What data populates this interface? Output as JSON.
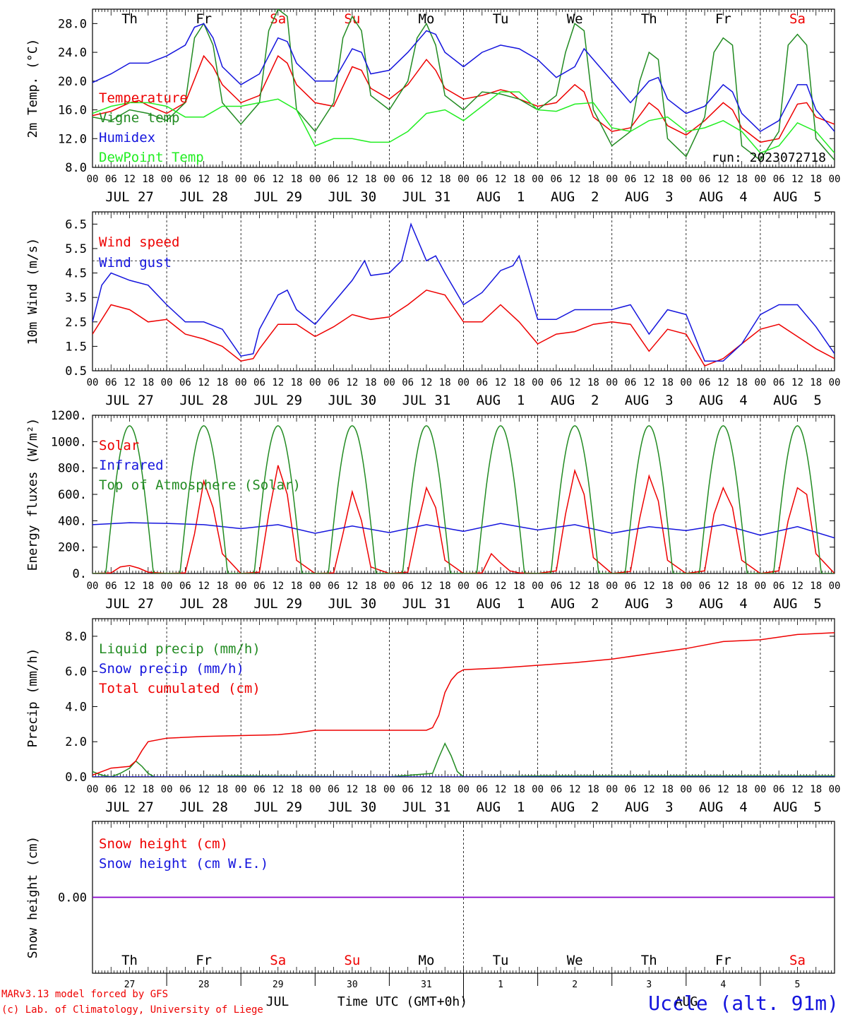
{
  "colors": {
    "red": "#ee0000",
    "green": "#228b22",
    "blue": "#1414dd",
    "lime": "#22ee22",
    "purple": "#8800cc",
    "black": "#000000"
  },
  "days": [
    {
      "abbr": "Th",
      "weekend": false,
      "date": "JUL 27",
      "num": "27"
    },
    {
      "abbr": "Fr",
      "weekend": false,
      "date": "JUL 28",
      "num": "28"
    },
    {
      "abbr": "Sa",
      "weekend": true,
      "date": "JUL 29",
      "num": "29"
    },
    {
      "abbr": "Su",
      "weekend": true,
      "date": "JUL 30",
      "num": "30"
    },
    {
      "abbr": "Mo",
      "weekend": false,
      "date": "JUL 31",
      "num": "31"
    },
    {
      "abbr": "Tu",
      "weekend": false,
      "date": "AUG  1",
      "num": "1"
    },
    {
      "abbr": "We",
      "weekend": false,
      "date": "AUG  2",
      "num": "2"
    },
    {
      "abbr": "Th",
      "weekend": false,
      "date": "AUG  3",
      "num": "3"
    },
    {
      "abbr": "Fr",
      "weekend": false,
      "date": "AUG  4",
      "num": "4"
    },
    {
      "abbr": "Sa",
      "weekend": true,
      "date": "AUG  5",
      "num": "5"
    }
  ],
  "hour_ticks": [
    "00",
    "06",
    "12",
    "18"
  ],
  "final_tick": "00",
  "footer": {
    "model_line": "MARv3.13 model forced by GFS",
    "lab_line": "(c) Lab. of Climatology, University of Liege",
    "month_jul": "JUL",
    "month_aug": "AUG",
    "time_label": "Time UTC (GMT+0h)",
    "station": "Uccle (alt. 91m)"
  },
  "chart_data": [
    {
      "type": "line",
      "ylabel": "2m Temp. (°C)",
      "ylim": [
        8,
        30
      ],
      "yticks": [
        "8.0",
        "12.0",
        "16.0",
        "20.0",
        "24.0",
        "28.0"
      ],
      "show_days": true,
      "annotation": "run: 2023072718",
      "x_unit": "hours since Jul 27 00 UTC",
      "series": [
        {
          "name": "Temperature",
          "color": "#ee0000",
          "x": [
            0,
            6,
            12,
            15,
            18,
            24,
            30,
            36,
            39,
            42,
            48,
            54,
            60,
            63,
            66,
            72,
            78,
            84,
            87,
            90,
            96,
            102,
            108,
            111,
            114,
            120,
            126,
            132,
            135,
            138,
            144,
            150,
            156,
            159,
            162,
            168,
            174,
            180,
            183,
            186,
            192,
            198,
            204,
            207,
            210,
            216,
            222,
            228,
            231,
            234,
            240
          ],
          "values": [
            15.2,
            15.8,
            17,
            17.3,
            16.6,
            15.5,
            17,
            23.5,
            22,
            19.5,
            17,
            18,
            23.5,
            22.5,
            19.5,
            17,
            16.5,
            22,
            21.5,
            19,
            17.5,
            19.5,
            23,
            21.5,
            19,
            17.5,
            18,
            18.8,
            18.5,
            17.5,
            16.5,
            17,
            19.5,
            18.5,
            15,
            13,
            13.5,
            17,
            16,
            13.8,
            12.5,
            14.5,
            17,
            16,
            13.5,
            11.5,
            12,
            16.8,
            17,
            15,
            14
          ]
        },
        {
          "name": "Vigne temp",
          "color": "#228b22",
          "x": [
            0,
            6,
            12,
            18,
            24,
            30,
            33,
            36,
            39,
            42,
            48,
            54,
            57,
            60,
            63,
            66,
            72,
            78,
            81,
            84,
            87,
            90,
            96,
            102,
            105,
            108,
            111,
            114,
            120,
            126,
            132,
            138,
            144,
            150,
            153,
            156,
            159,
            162,
            168,
            174,
            177,
            180,
            183,
            186,
            192,
            198,
            201,
            204,
            207,
            210,
            216,
            222,
            225,
            228,
            231,
            234,
            240
          ],
          "values": [
            15,
            14.5,
            16,
            15.5,
            14.5,
            17,
            26,
            28,
            25,
            17,
            14,
            17,
            27,
            30,
            29,
            16,
            13,
            17,
            26,
            29,
            27,
            18,
            16,
            20,
            26,
            28,
            25,
            18,
            16,
            18.5,
            18.2,
            17.5,
            16,
            18,
            24,
            28,
            27,
            16,
            11,
            13,
            20,
            24,
            23,
            12,
            9.5,
            15,
            24,
            26,
            25,
            11,
            9,
            13,
            25,
            26.5,
            25,
            12,
            9
          ]
        },
        {
          "name": "Humidex",
          "color": "#1414dd",
          "x": [
            0,
            6,
            12,
            18,
            24,
            30,
            33,
            36,
            39,
            42,
            48,
            54,
            60,
            63,
            66,
            72,
            78,
            84,
            87,
            90,
            96,
            102,
            108,
            111,
            114,
            120,
            126,
            132,
            138,
            144,
            150,
            156,
            159,
            162,
            168,
            174,
            180,
            183,
            186,
            192,
            198,
            204,
            207,
            210,
            216,
            222,
            228,
            231,
            234,
            240
          ],
          "values": [
            19.8,
            21,
            22.5,
            22.5,
            23.5,
            25,
            27.5,
            28,
            26,
            22,
            19.5,
            21,
            26,
            25.5,
            22.5,
            20,
            20,
            24.5,
            24,
            21,
            21.5,
            24,
            27,
            26.5,
            24,
            22,
            24,
            25,
            24.5,
            23,
            20.5,
            22,
            24.5,
            23,
            20,
            17,
            20,
            20.5,
            17.5,
            15.5,
            16.5,
            19.5,
            18.5,
            15.5,
            13,
            14.5,
            19.5,
            19.5,
            16,
            13
          ]
        },
        {
          "name": "DewPoint Temp",
          "color": "#22ee22",
          "x": [
            0,
            6,
            12,
            18,
            24,
            30,
            36,
            42,
            48,
            54,
            60,
            66,
            72,
            78,
            84,
            90,
            96,
            102,
            108,
            114,
            120,
            126,
            132,
            138,
            144,
            150,
            156,
            162,
            168,
            174,
            180,
            186,
            192,
            198,
            204,
            210,
            216,
            222,
            228,
            234,
            240
          ],
          "values": [
            15.5,
            16.5,
            17,
            17,
            16.5,
            15,
            15,
            16.5,
            16.5,
            17,
            17.5,
            16,
            11,
            12,
            12,
            11.5,
            11.5,
            13,
            15.5,
            16,
            14.5,
            16.5,
            18.5,
            18.5,
            16,
            15.8,
            16.8,
            17,
            13.5,
            13,
            14.5,
            15,
            13,
            13.5,
            14.5,
            13,
            10,
            11,
            14.2,
            13,
            10
          ]
        }
      ]
    },
    {
      "type": "line",
      "ylabel": "10m Wind (m/s)",
      "ylim": [
        0.5,
        7
      ],
      "yticks": [
        "0.5",
        "1.5",
        "2.5",
        "3.5",
        "4.5",
        "5.5",
        "6.5"
      ],
      "reference_line": 5,
      "show_days": true,
      "x_unit": "hours since Jul 27 00 UTC",
      "series": [
        {
          "name": "Wind speed",
          "color": "#ee0000",
          "x": [
            0,
            6,
            12,
            18,
            24,
            30,
            36,
            42,
            48,
            52,
            54,
            60,
            66,
            72,
            78,
            84,
            90,
            96,
            102,
            108,
            114,
            120,
            126,
            132,
            138,
            144,
            150,
            156,
            162,
            168,
            174,
            180,
            186,
            192,
            198,
            204,
            210,
            216,
            222,
            228,
            234,
            240
          ],
          "values": [
            2,
            3.2,
            3,
            2.5,
            2.6,
            2,
            1.8,
            1.5,
            0.9,
            1,
            1.4,
            2.4,
            2.4,
            1.9,
            2.3,
            2.8,
            2.6,
            2.7,
            3.2,
            3.8,
            3.6,
            2.5,
            2.5,
            3.2,
            2.5,
            1.6,
            2,
            2.1,
            2.4,
            2.5,
            2.4,
            1.3,
            2.2,
            2,
            0.7,
            1,
            1.6,
            2.2,
            2.4,
            1.9,
            1.4,
            1
          ]
        },
        {
          "name": "Wind gust",
          "color": "#1414dd",
          "x": [
            0,
            3,
            6,
            12,
            18,
            24,
            30,
            36,
            42,
            48,
            52,
            54,
            60,
            63,
            66,
            72,
            78,
            84,
            88,
            90,
            96,
            100,
            103,
            108,
            111,
            114,
            120,
            126,
            132,
            136,
            138,
            144,
            150,
            156,
            162,
            168,
            174,
            180,
            186,
            192,
            198,
            204,
            210,
            216,
            222,
            228,
            234,
            240
          ],
          "values": [
            2.5,
            4,
            4.5,
            4.2,
            4,
            3.2,
            2.5,
            2.5,
            2.2,
            1.1,
            1.2,
            2.2,
            3.6,
            3.8,
            3,
            2.4,
            3.3,
            4.2,
            5,
            4.4,
            4.5,
            5,
            6.5,
            5,
            5.2,
            4.5,
            3.2,
            3.7,
            4.6,
            4.8,
            5.2,
            2.6,
            2.6,
            3,
            3,
            3,
            3.2,
            2,
            3,
            2.8,
            0.9,
            0.9,
            1.6,
            2.8,
            3.2,
            3.2,
            2.3,
            1.2
          ]
        }
      ]
    },
    {
      "type": "line",
      "ylabel": "Energy fluxes (W/m²)",
      "ylim": [
        0,
        1200
      ],
      "yticks": [
        "0.",
        "200.",
        "400.",
        "600.",
        "800.",
        "1000.",
        "1200."
      ],
      "show_days": true,
      "x_unit": "hours since Jul 27 00 UTC",
      "series": [
        {
          "name": "Solar",
          "color": "#ee0000",
          "x": [
            0,
            6,
            9,
            12,
            15,
            18,
            24,
            30,
            33,
            36,
            39,
            42,
            48,
            54,
            57,
            60,
            63,
            66,
            72,
            78,
            81,
            84,
            87,
            90,
            96,
            102,
            105,
            108,
            111,
            114,
            120,
            126,
            129,
            132,
            135,
            138,
            144,
            150,
            153,
            156,
            159,
            162,
            168,
            174,
            177,
            180,
            183,
            186,
            192,
            198,
            201,
            204,
            207,
            210,
            216,
            222,
            225,
            228,
            231,
            234,
            240
          ],
          "values": [
            0,
            5,
            50,
            60,
            40,
            10,
            0,
            5,
            300,
            700,
            500,
            150,
            0,
            10,
            450,
            820,
            600,
            100,
            0,
            5,
            300,
            620,
            400,
            50,
            0,
            10,
            350,
            650,
            500,
            100,
            0,
            5,
            150,
            80,
            20,
            5,
            0,
            20,
            450,
            780,
            600,
            120,
            0,
            15,
            420,
            740,
            550,
            100,
            0,
            20,
            450,
            650,
            500,
            100,
            0,
            20,
            400,
            650,
            600,
            150,
            0
          ]
        },
        {
          "name": "Infrared",
          "color": "#1414dd",
          "x": [
            0,
            12,
            24,
            36,
            48,
            60,
            72,
            84,
            96,
            108,
            120,
            132,
            144,
            156,
            168,
            180,
            192,
            204,
            216,
            228,
            240
          ],
          "values": [
            370,
            385,
            380,
            370,
            340,
            370,
            305,
            360,
            310,
            370,
            320,
            380,
            330,
            370,
            305,
            355,
            325,
            370,
            290,
            355,
            270
          ]
        },
        {
          "name": "Top of Atmosphere (Solar)",
          "color": "#228b22",
          "shape": "daily_bell",
          "peak": 1120,
          "sunrise_hour": 4.3,
          "sunset_hour": 19.7
        }
      ]
    },
    {
      "type": "line",
      "ylabel": "Precip (mm/h)",
      "ylim": [
        0,
        9
      ],
      "yticks": [
        "0.0",
        "2.0",
        "4.0",
        "6.0",
        "8.0"
      ],
      "show_days": true,
      "x_unit": "hours since Jul 27 00 UTC",
      "series": [
        {
          "name": "Liquid precip (mm/h)",
          "color": "#228b22",
          "x": [
            0,
            3,
            6,
            9,
            12,
            14,
            16,
            18,
            20,
            24,
            48,
            96,
            110,
            112,
            114,
            116,
            118,
            120,
            144,
            240
          ],
          "values": [
            0.3,
            0.1,
            0,
            0.2,
            0.5,
            0.9,
            0.6,
            0.2,
            0,
            0,
            0.05,
            0,
            0.2,
            1.1,
            1.9,
            1.2,
            0.3,
            0,
            0.05,
            0.05
          ]
        },
        {
          "name": "Snow precip (mm/h)",
          "color": "#1414dd",
          "x": [
            0,
            240
          ],
          "values": [
            0,
            0
          ]
        },
        {
          "name": "Total cumulated (cm)",
          "color": "#ee0000",
          "x": [
            0,
            6,
            12,
            14,
            16,
            18,
            24,
            36,
            48,
            60,
            66,
            72,
            96,
            108,
            110,
            112,
            114,
            116,
            118,
            120,
            132,
            144,
            156,
            168,
            180,
            192,
            204,
            216,
            228,
            240
          ],
          "values": [
            0.1,
            0.5,
            0.6,
            0.9,
            1.5,
            2,
            2.2,
            2.3,
            2.35,
            2.4,
            2.5,
            2.65,
            2.65,
            2.65,
            2.8,
            3.5,
            4.8,
            5.5,
            5.9,
            6.1,
            6.2,
            6.35,
            6.5,
            6.7,
            7,
            7.3,
            7.7,
            7.8,
            8.1,
            8.2
          ]
        }
      ]
    },
    {
      "type": "line",
      "ylabel": "Snow height (cm)",
      "ylim": [
        -1,
        1
      ],
      "yticks": [
        "0.00"
      ],
      "show_days": false,
      "x_unit": "hours since Jul 27 00 UTC",
      "series": [
        {
          "name": "Snow height (cm)",
          "color": "#ee0000",
          "x": [
            0,
            240
          ],
          "values": [
            0,
            0
          ]
        },
        {
          "name": "Snow height (cm W.E.)",
          "color": "#1414dd",
          "x": [
            0,
            240
          ],
          "values": [
            0,
            0
          ]
        }
      ]
    }
  ]
}
